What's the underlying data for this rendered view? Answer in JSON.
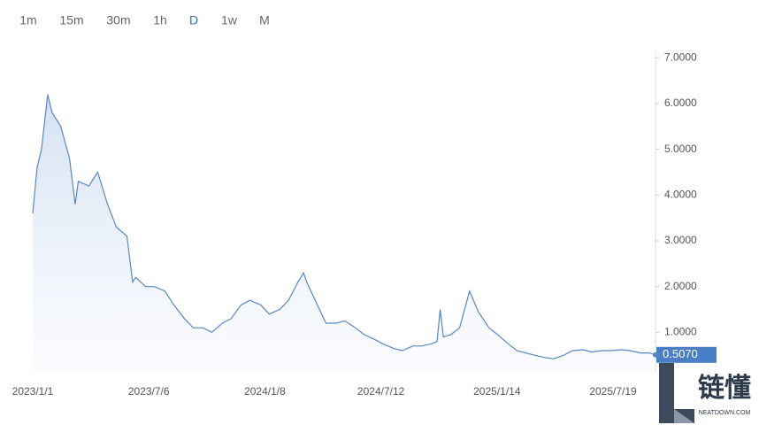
{
  "chart_data": {
    "type": "area-line",
    "timeframes": [
      "1m",
      "15m",
      "30m",
      "1h",
      "D",
      "1w",
      "M"
    ],
    "active_timeframe": "D",
    "x": [
      "2023/1/1",
      "2023/1/8",
      "2023/1/15",
      "2023/1/25",
      "2023/2/1",
      "2023/2/15",
      "2023/3/1",
      "2023/3/10",
      "2023/3/15",
      "2023/4/1",
      "2023/4/15",
      "2023/5/1",
      "2023/5/15",
      "2023/6/1",
      "2023/6/10",
      "2023/6/15",
      "2023/7/1",
      "2023/7/15",
      "2023/8/1",
      "2023/8/15",
      "2023/9/1",
      "2023/9/15",
      "2023/10/1",
      "2023/10/15",
      "2023/11/1",
      "2023/11/15",
      "2023/12/1",
      "2023/12/15",
      "2024/1/1",
      "2024/1/15",
      "2024/2/1",
      "2024/2/15",
      "2024/3/1",
      "2024/3/10",
      "2024/3/15",
      "2024/4/1",
      "2024/4/15",
      "2024/5/1",
      "2024/5/15",
      "2024/6/1",
      "2024/6/15",
      "2024/7/1",
      "2024/7/15",
      "2024/8/1",
      "2024/8/15",
      "2024/9/1",
      "2024/9/15",
      "2024/10/1",
      "2024/10/10",
      "2024/10/15",
      "2024/10/20",
      "2024/11/1",
      "2024/11/15",
      "2024/12/1",
      "2024/12/15",
      "2025/1/1",
      "2025/1/15",
      "2025/2/1",
      "2025/2/15",
      "2025/3/1",
      "2025/3/15",
      "2025/4/1",
      "2025/4/15",
      "2025/5/1",
      "2025/5/15",
      "2025/6/1",
      "2025/6/15",
      "2025/7/1",
      "2025/7/15",
      "2025/8/1",
      "2025/8/15",
      "2025/9/1",
      "2025/9/15",
      "2025/9/25"
    ],
    "series": [
      {
        "color": "#5a87c2",
        "values": [
          3.6,
          4.6,
          5.0,
          6.2,
          5.8,
          5.5,
          4.8,
          3.8,
          4.3,
          4.2,
          4.5,
          3.8,
          3.3,
          3.1,
          2.1,
          2.2,
          2.0,
          2.0,
          1.9,
          1.6,
          1.3,
          1.1,
          1.1,
          1.0,
          1.2,
          1.3,
          1.6,
          1.7,
          1.6,
          1.4,
          1.5,
          1.7,
          2.1,
          2.3,
          2.1,
          1.6,
          1.2,
          1.2,
          1.25,
          1.1,
          0.95,
          0.85,
          0.75,
          0.65,
          0.6,
          0.7,
          0.7,
          0.75,
          0.8,
          1.5,
          0.9,
          0.95,
          1.1,
          1.9,
          1.45,
          1.1,
          0.95,
          0.75,
          0.6,
          0.55,
          0.5,
          0.45,
          0.42,
          0.5,
          0.6,
          0.62,
          0.57,
          0.6,
          0.6,
          0.62,
          0.6,
          0.55,
          0.55,
          0.507
        ]
      }
    ],
    "current_price": {
      "value": 0.507,
      "label": "0.5070"
    },
    "xlim": [
      "2023/1/1",
      "2025/9/25"
    ],
    "xticks": [
      "2023/1/1",
      "2023/7/6",
      "2024/1/8",
      "2024/7/12",
      "2025/1/14",
      "2025/7/19"
    ],
    "ylim": [
      0,
      7.2
    ],
    "yticks": [
      {
        "value": 1,
        "label": "1.0000"
      },
      {
        "value": 2,
        "label": "2.0000"
      },
      {
        "value": 3,
        "label": "3.0000"
      },
      {
        "value": 4,
        "label": "4.0000"
      },
      {
        "value": 5,
        "label": "5.0000"
      },
      {
        "value": 6,
        "label": "6.0000"
      },
      {
        "value": 7,
        "label": "7.0000"
      }
    ],
    "watermark": {
      "text": "链懂",
      "subtext": "NEATDOWN.COM"
    }
  }
}
